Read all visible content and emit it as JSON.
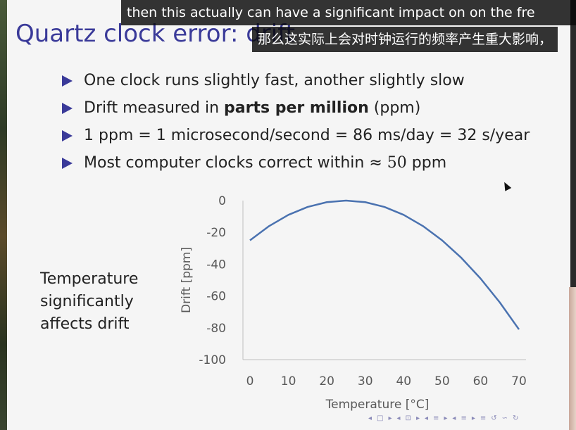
{
  "slide": {
    "title": "Quartz clock error: drift",
    "bullets": [
      {
        "text": "One clock runs slightly fast, another slightly slow"
      },
      {
        "pre": "Drift measured in ",
        "bold": "parts per million",
        "post": " (ppm)"
      },
      {
        "text": "1 ppm = 1 microsecond/second = 86 ms/day = 32 s/year"
      },
      {
        "pre": "Most computer clocks correct within ≈ ",
        "ital": "50",
        "post": " ppm"
      }
    ],
    "caption": [
      "Temperature",
      "significantly",
      "affects drift"
    ]
  },
  "subtitles": {
    "english": "then this actually can have a significant impact on on the fre",
    "chinese": "那么这实际上会对时钟运行的频率产生重大影响，"
  },
  "navigation": {
    "icons": [
      "◂",
      "□",
      "▸",
      "◂",
      "⊡",
      "▸",
      "◂",
      "≡",
      "▸",
      "◂",
      "≡",
      "▸",
      "≡",
      "↺",
      "∽",
      "↻"
    ]
  },
  "colors": {
    "title": "#3a3a99",
    "bullet": "#3a3a99",
    "line": "#4a72b0",
    "axis": "#bfbfbf"
  },
  "chart_data": {
    "type": "line",
    "xlabel": "Temperature [°C]",
    "ylabel": "Drift [ppm]",
    "xlim": [
      0,
      70
    ],
    "ylim": [
      -100,
      0
    ],
    "xticks": [
      0,
      10,
      20,
      30,
      40,
      50,
      60,
      70
    ],
    "yticks": [
      0,
      -20,
      -40,
      -60,
      -80,
      -100
    ],
    "grid": false,
    "legend": "none",
    "series": [
      {
        "x": [
          0,
          5,
          10,
          15,
          20,
          25,
          30,
          35,
          40,
          45,
          50,
          55,
          60,
          65,
          70
        ],
        "y": [
          -25,
          -16,
          -9,
          -4,
          -1,
          0,
          -1,
          -4,
          -9,
          -16,
          -25,
          -36,
          -49,
          -64,
          -81
        ]
      }
    ]
  }
}
